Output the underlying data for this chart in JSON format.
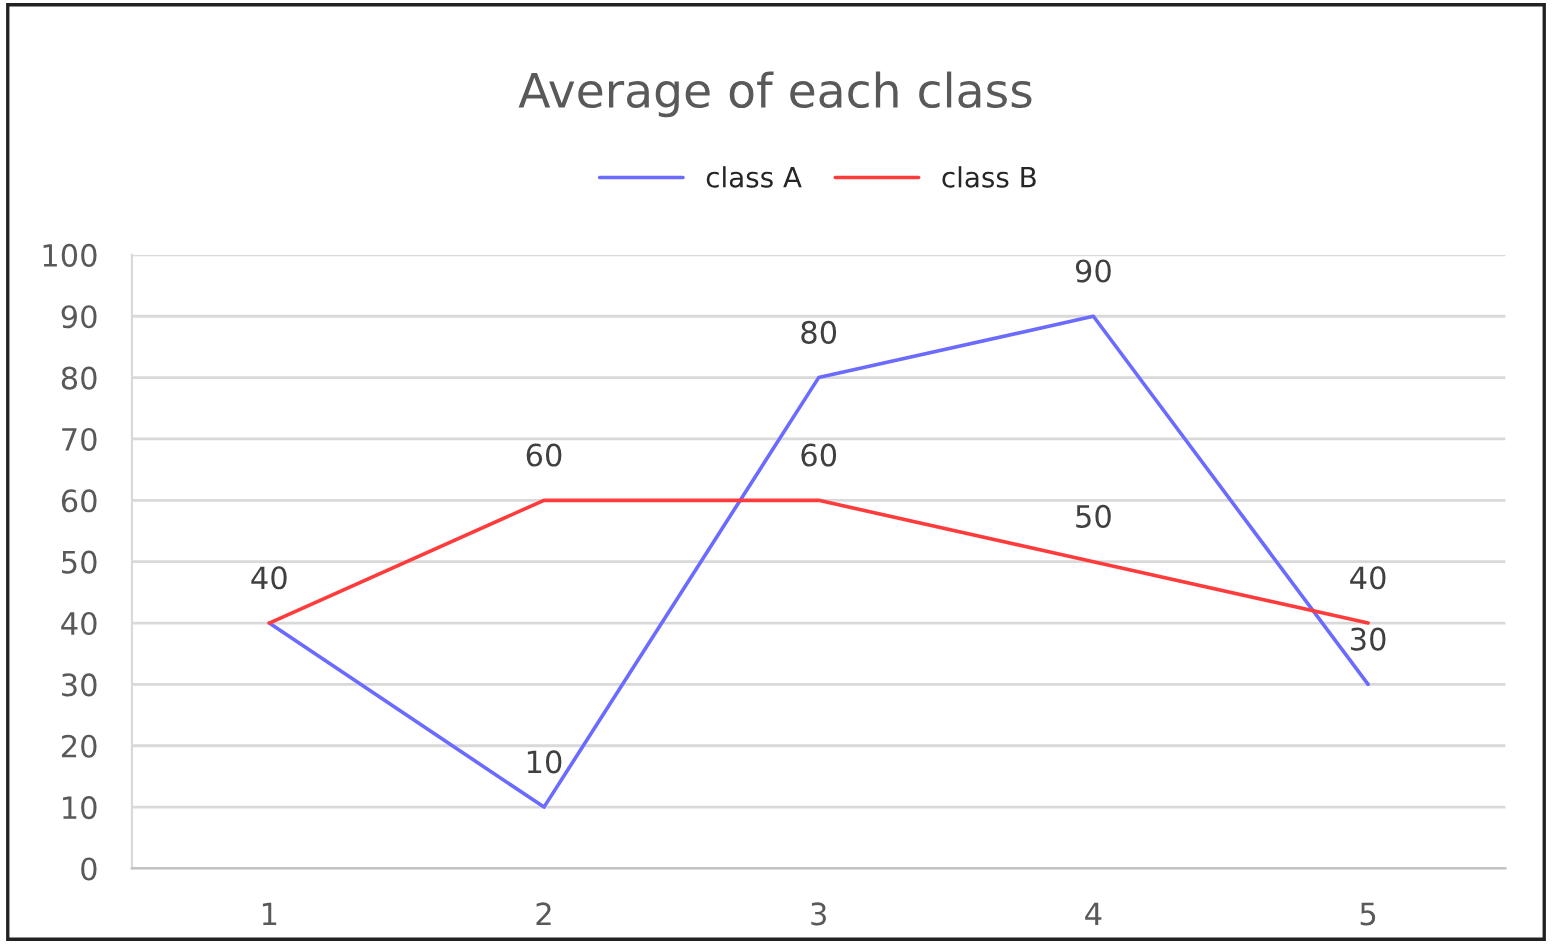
{
  "chart_data": {
    "type": "line",
    "title": "Average of each class",
    "categories": [
      "1",
      "2",
      "3",
      "4",
      "5"
    ],
    "series": [
      {
        "name": "class A",
        "color": "#6b6bff",
        "values": [
          40,
          10,
          80,
          90,
          30
        ],
        "value_labels": [
          "40",
          "10",
          "80",
          "90",
          "30"
        ]
      },
      {
        "name": "class B",
        "color": "#ff3b3b",
        "values": [
          40,
          60,
          60,
          50,
          40
        ],
        "value_labels": [
          null,
          "60",
          "60",
          "50",
          "40"
        ]
      }
    ],
    "ylim": [
      0,
      100
    ],
    "yticks": [
      0,
      10,
      20,
      30,
      40,
      50,
      60,
      70,
      80,
      90,
      100
    ],
    "grid": "y",
    "legend": "top",
    "marker": "none",
    "line_style": "solid"
  }
}
